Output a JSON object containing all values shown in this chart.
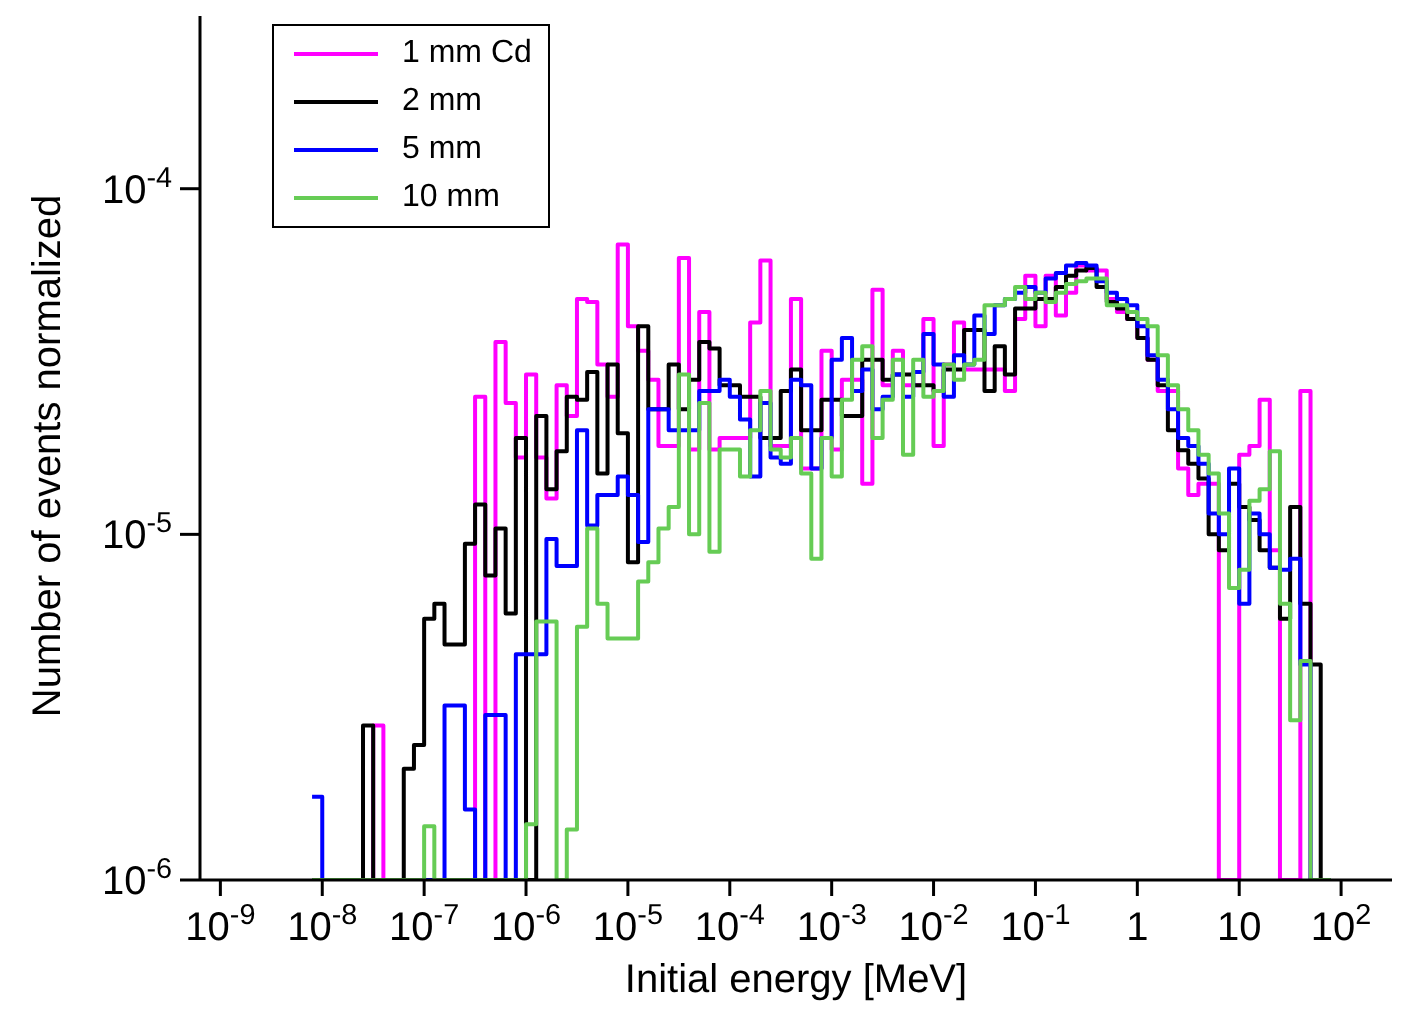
{
  "chart_data": {
    "type": "histogram",
    "xlabel": "Initial energy [MeV]",
    "ylabel": "Number of events normalized",
    "log": "xy",
    "grid": false,
    "legend": "top left",
    "xlim": [
      6.31e-10,
      316
    ],
    "ylim": [
      1e-06,
      0.000316
    ],
    "xticks": [
      {
        "value": 1e-09,
        "label": "10$^{-9}$"
      },
      {
        "value": 1e-08,
        "label": "10$^{-8}$"
      },
      {
        "value": 1e-07,
        "label": "10$^{-7}$"
      },
      {
        "value": 1e-06,
        "label": "10$^{-6}$"
      },
      {
        "value": 1e-05,
        "label": "10$^{-5}$"
      },
      {
        "value": 0.0001,
        "label": "10$^{-4}$"
      },
      {
        "value": 0.001,
        "label": "10$^{-3}$"
      },
      {
        "value": 0.01,
        "label": "10$^{-2}$"
      },
      {
        "value": 0.1,
        "label": "10$^{-1}$"
      },
      1,
      10,
      {
        "value": 100,
        "label": "10$^{2}$"
      }
    ],
    "yticks": [
      {
        "value": 1e-06,
        "label": "10$^{-6}$"
      },
      {
        "value": 1e-05,
        "label": "10$^{-5}$"
      },
      {
        "value": 0.0001,
        "label": "10$^{-4}$"
      }
    ],
    "bins": [
      7.943e-09,
      1e-08,
      1.259e-08,
      1.585e-08,
      1.995e-08,
      2.512e-08,
      3.162e-08,
      3.981e-08,
      5.012e-08,
      6.31e-08,
      7.943e-08,
      1e-07,
      1.259e-07,
      1.585e-07,
      1.995e-07,
      2.512e-07,
      3.162e-07,
      3.981e-07,
      5.012e-07,
      6.31e-07,
      7.943e-07,
      1e-06,
      1.259e-06,
      1.585e-06,
      1.995e-06,
      2.512e-06,
      3.162e-06,
      3.981e-06,
      5.012e-06,
      6.31e-06,
      7.943e-06,
      1e-05,
      1.259e-05,
      1.585e-05,
      1.995e-05,
      2.512e-05,
      3.162e-05,
      3.981e-05,
      5.012e-05,
      6.31e-05,
      7.943e-05,
      0.0001,
      0.0001259,
      0.0001585,
      0.0001995,
      0.0002512,
      0.0003162,
      0.0003981,
      0.0005012,
      0.000631,
      0.0007943,
      0.001,
      0.001259,
      0.001585,
      0.001995,
      0.002512,
      0.003162,
      0.003981,
      0.005012,
      0.00631,
      0.007943,
      0.01,
      0.01259,
      0.01585,
      0.01995,
      0.02512,
      0.03162,
      0.03981,
      0.05012,
      0.0631,
      0.07943,
      0.1,
      0.1259,
      0.1585,
      0.1995,
      0.2512,
      0.3162,
      0.3981,
      0.5012,
      0.631,
      0.7943,
      1,
      1.259,
      1.585,
      1.995,
      2.512,
      3.162,
      3.981,
      5.012,
      6.31,
      7.943,
      10,
      12.59,
      15.85,
      19.95,
      25.12,
      31.62,
      39.81,
      50.12,
      63.1,
      79.43
    ],
    "series": [
      {
        "name": "1 mm Cd",
        "color": "#ff00ff",
        "values": [
          null,
          null,
          null,
          null,
          null,
          null,
          2.8e-06,
          null,
          null,
          null,
          null,
          null,
          null,
          null,
          null,
          null,
          2.5e-05,
          null,
          3.6e-05,
          2.4e-05,
          1.67e-05,
          2.9e-05,
          1.67e-05,
          1.27e-05,
          2.7e-05,
          2.2e-05,
          4.8e-05,
          4.7e-05,
          3.1e-05,
          2.5e-05,
          6.9e-05,
          4e-05,
          3.4e-05,
          2.8e-05,
          1.8e-05,
          1.8e-05,
          6.3e-05,
          1.76e-05,
          4.4e-05,
          1.76e-05,
          1.9e-05,
          1.9e-05,
          1.9e-05,
          4.1e-05,
          6.2e-05,
          1.8e-05,
          1.8e-05,
          4.8e-05,
          1.55e-05,
          1.55e-05,
          3.4e-05,
          1.76e-05,
          2.8e-05,
          2.8e-05,
          1.4e-05,
          5.1e-05,
          2.7e-05,
          3.4e-05,
          2.7e-05,
          2.7e-05,
          4.2e-05,
          1.8e-05,
          3.1e-05,
          4.1e-05,
          3e-05,
          3e-05,
          3e-05,
          3e-05,
          2.6e-05,
          4.2e-05,
          5.6e-05,
          4e-05,
          5.6e-05,
          4.3e-05,
          5e-05,
          6e-05,
          5.8e-05,
          5.8e-05,
          4.8e-05,
          4.4e-05,
          4.2e-05,
          3.7e-05,
          3.2e-05,
          2.6e-05,
          2.6e-05,
          1.55e-05,
          1.3e-05,
          1.4e-05,
          1.4e-05,
          null,
          null,
          1.7e-05,
          1.8e-05,
          2.45e-05,
          9e-06,
          null,
          null,
          2.6e-05,
          null,
          null
        ]
      },
      {
        "name": "2 mm",
        "color": "#000000",
        "values": [
          null,
          null,
          null,
          null,
          null,
          2.8e-06,
          null,
          null,
          null,
          2.1e-06,
          2.46e-06,
          5.7e-06,
          6.3e-06,
          4.8e-06,
          4.8e-06,
          9.4e-06,
          1.22e-05,
          7.6e-06,
          1.04e-05,
          5.9e-06,
          1.9e-05,
          null,
          2.2e-05,
          1.35e-05,
          1.74e-05,
          2.5e-05,
          2.45e-05,
          2.95e-05,
          1.5e-05,
          3.1e-05,
          1.96e-05,
          8.3e-06,
          4e-05,
          2.3e-05,
          2.3e-05,
          3.1e-05,
          2.3e-05,
          2.8e-05,
          3.6e-05,
          3.45e-05,
          2.7e-05,
          2.7e-05,
          2.5e-05,
          2.5e-05,
          1.9e-05,
          1.9e-05,
          2.6e-05,
          3e-05,
          2e-05,
          2e-05,
          2.45e-05,
          2.45e-05,
          2.2e-05,
          2.2e-05,
          3.2e-05,
          3.2e-05,
          2.8e-05,
          2.9e-05,
          2.9e-05,
          2.7e-05,
          2.7e-05,
          2.6e-05,
          3e-05,
          3e-05,
          3.9e-05,
          3.9e-05,
          2.6e-05,
          3.5e-05,
          2.9e-05,
          4.5e-05,
          4.5e-05,
          4.8e-05,
          4.8e-05,
          5.2e-05,
          5.6e-05,
          5.8e-05,
          5.9e-05,
          5.2e-05,
          4.7e-05,
          4.5e-05,
          4.2e-05,
          3.7e-05,
          3.2e-05,
          2.7e-05,
          2e-05,
          1.75e-05,
          1.6e-05,
          1.45e-05,
          1e-05,
          9e-06,
          1.4e-05,
          1.2e-05,
          1.1e-05,
          9e-06,
          8e-06,
          5.7e-06,
          1.2e-05,
          6.3e-06,
          4.2e-06,
          null
        ]
      },
      {
        "name": "5 mm",
        "color": "#0000ff",
        "values": [
          1.74e-06,
          null,
          null,
          null,
          null,
          null,
          null,
          null,
          null,
          null,
          null,
          null,
          null,
          3.2e-06,
          3.2e-06,
          1.6e-06,
          null,
          3e-06,
          3e-06,
          null,
          4.5e-06,
          4.5e-06,
          4.5e-06,
          9.7e-06,
          8.1e-06,
          8.1e-06,
          2e-05,
          1.06e-05,
          1.3e-05,
          1.3e-05,
          1.47e-05,
          1.3e-05,
          9.5e-06,
          2.3e-05,
          2.3e-05,
          2e-05,
          2e-05,
          2e-05,
          2.6e-05,
          2.6e-05,
          2.8e-05,
          2.5e-05,
          2.15e-05,
          1.47e-05,
          2.4e-05,
          1.67e-05,
          1.6e-05,
          2.8e-05,
          2.7e-05,
          1.55e-05,
          1.9e-05,
          3.2e-05,
          3.7e-05,
          2.6e-05,
          3e-05,
          2.3e-05,
          2.5e-05,
          2.9e-05,
          2.5e-05,
          2.95e-05,
          3.8e-05,
          3.1e-05,
          2.5e-05,
          3.3e-05,
          3.1e-05,
          4.3e-05,
          3.8e-05,
          4.6e-05,
          4.8e-05,
          5e-05,
          5.2e-05,
          5e-05,
          5.5e-05,
          5.7e-05,
          6e-05,
          6.1e-05,
          6e-05,
          5.4e-05,
          5e-05,
          4.8e-05,
          4.6e-05,
          4e-05,
          3.3e-05,
          2.8e-05,
          2.3e-05,
          1.9e-05,
          1.8e-05,
          1.6e-05,
          1.15e-05,
          1e-05,
          1.55e-05,
          6.3e-06,
          1.15e-05,
          1e-05,
          8e-06,
          7.9e-06,
          8.5e-06,
          4.2e-06,
          null,
          null
        ]
      },
      {
        "name": "10 mm",
        "color": "#66cc55",
        "values": [
          null,
          null,
          null,
          null,
          null,
          null,
          null,
          null,
          null,
          null,
          null,
          1.43e-06,
          null,
          null,
          null,
          null,
          null,
          null,
          null,
          null,
          null,
          1.45e-06,
          5.6e-06,
          5.6e-06,
          null,
          1.4e-06,
          5.4e-06,
          1.04e-05,
          6.3e-06,
          5e-06,
          5e-06,
          5e-06,
          7.3e-06,
          8.3e-06,
          1.04e-05,
          1.2e-05,
          2.9e-05,
          1e-05,
          2.4e-05,
          8.9e-06,
          1.76e-05,
          1.76e-05,
          1.47e-05,
          2e-05,
          2.6e-05,
          1.76e-05,
          1.67e-05,
          1.9e-05,
          1.5e-05,
          8.5e-06,
          1.9e-05,
          1.47e-05,
          2.45e-05,
          3.2e-05,
          3.5e-05,
          1.9e-05,
          2.45e-05,
          3.2e-05,
          1.7e-05,
          3.2e-05,
          2.5e-05,
          2.6e-05,
          3.1e-05,
          2.8e-05,
          3.1e-05,
          3.2e-05,
          4.6e-05,
          4.6e-05,
          4.8e-05,
          5.2e-05,
          4.8e-05,
          5e-05,
          4.7e-05,
          5e-05,
          5.3e-05,
          5.4e-05,
          5.5e-05,
          5.5e-05,
          4.6e-05,
          4.6e-05,
          4.4e-05,
          4.2e-05,
          4e-05,
          3.3e-05,
          2.7e-05,
          2.3e-05,
          2e-05,
          1.7e-05,
          1.5e-05,
          1.15e-05,
          7e-06,
          7.9e-06,
          1.25e-05,
          1.35e-05,
          1.74e-05,
          6.3e-06,
          2.9e-06,
          4.3e-06,
          null,
          null
        ]
      }
    ]
  }
}
